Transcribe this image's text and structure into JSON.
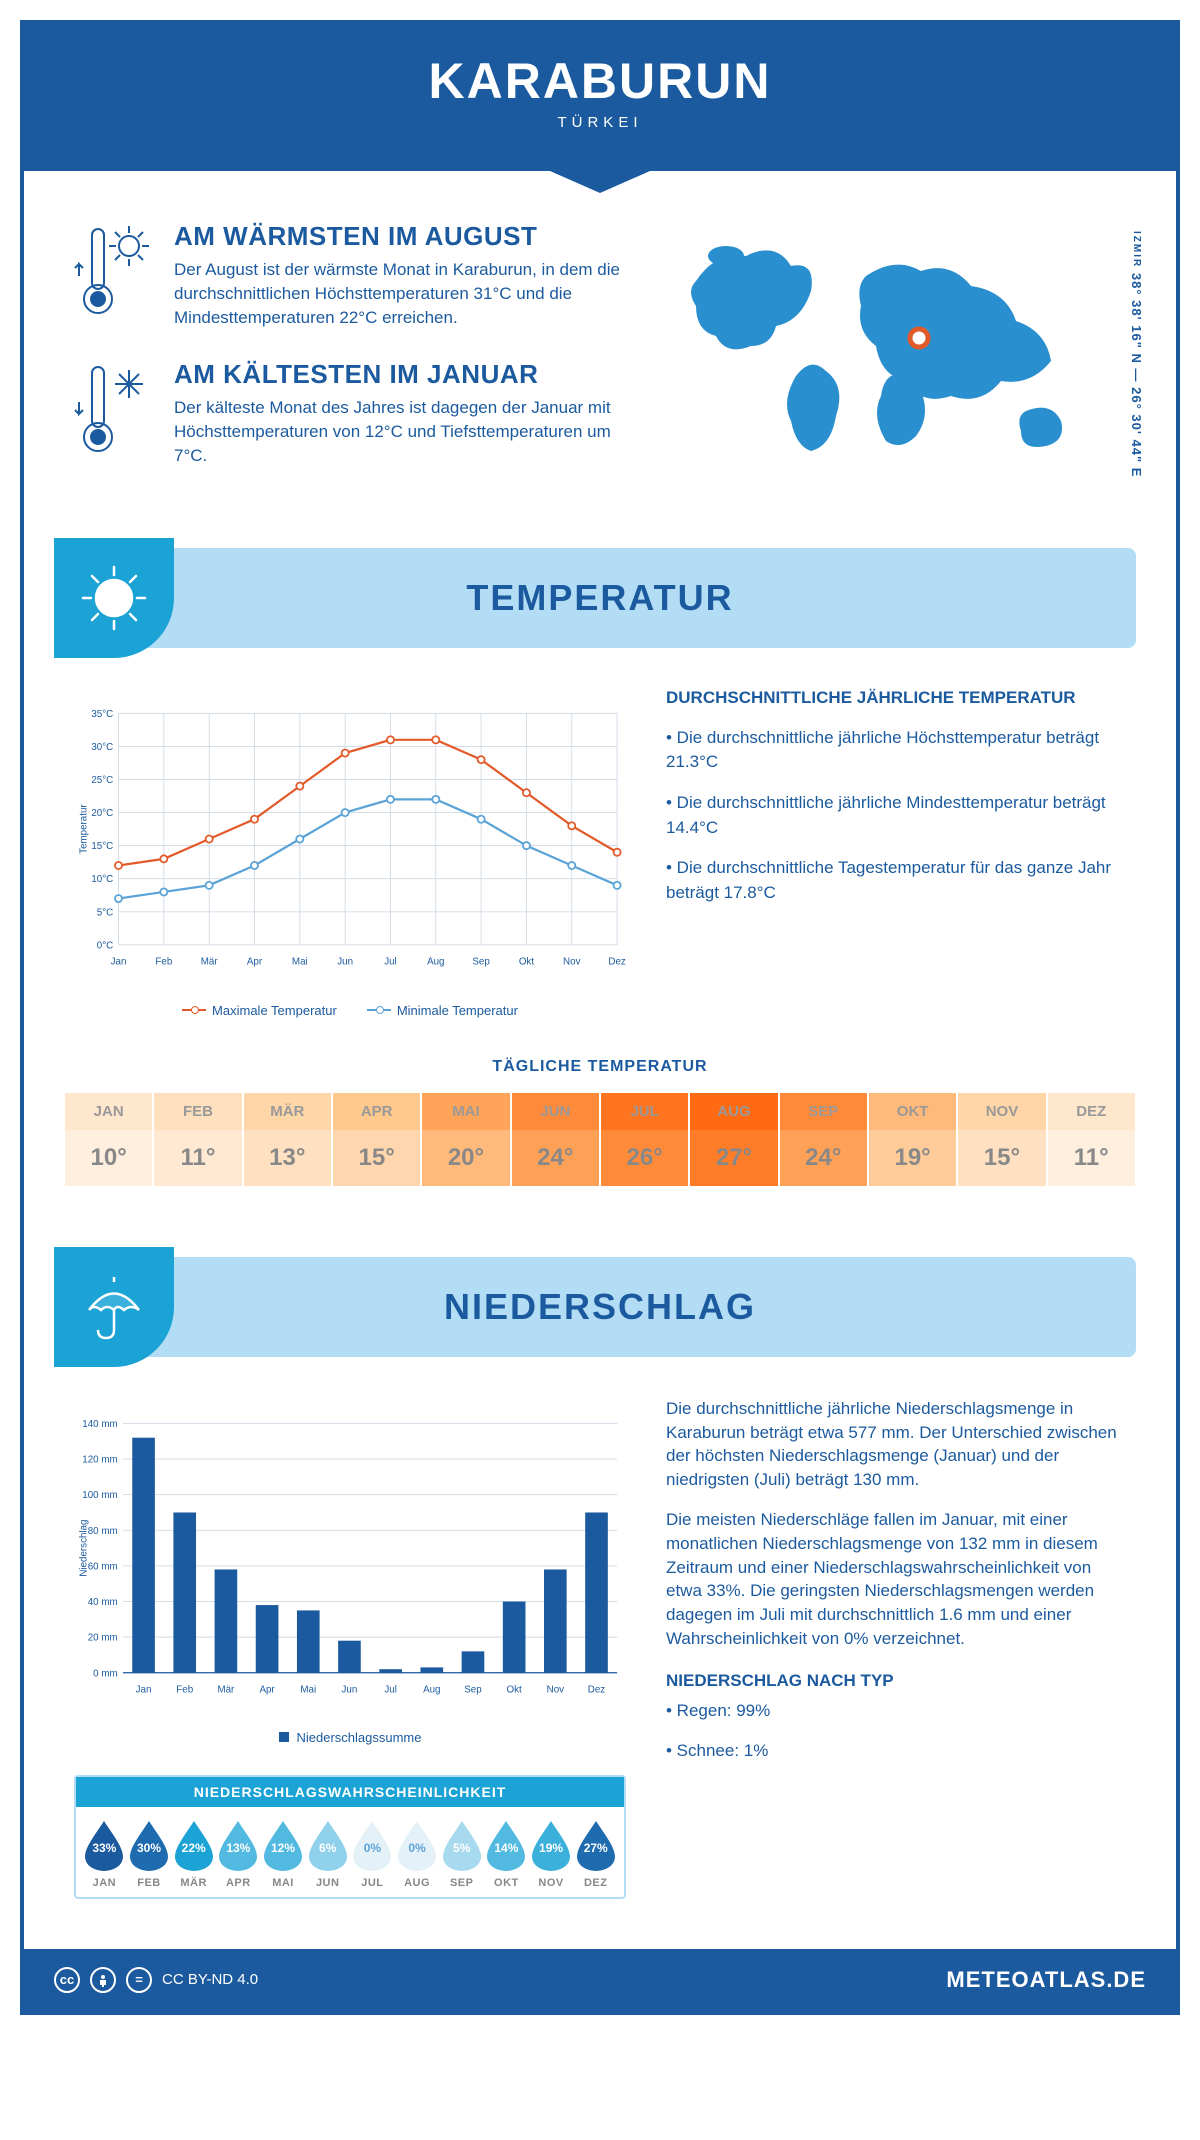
{
  "colors": {
    "primary": "#1b5a9e",
    "light_blue": "#b3ddf5",
    "accent_blue": "#1ba3d6",
    "max_line": "#e35a2a",
    "min_line": "#5ba3d6",
    "grid": "#d0d9e4",
    "white": "#ffffff"
  },
  "header": {
    "title": "KARABURUN",
    "subtitle": "TÜRKEI"
  },
  "intro": {
    "warm": {
      "heading": "AM WÄRMSTEN IM AUGUST",
      "body": "Der August ist der wärmste Monat in Karaburun, in dem die durchschnittlichen Höchsttemperaturen 31°C und die Mindesttemperaturen 22°C erreichen."
    },
    "cold": {
      "heading": "AM KÄLTESTEN IM JANUAR",
      "body": "Der kälteste Monat des Jahres ist dagegen der Januar mit Höchsttemperaturen von 12°C und Tiefsttemperaturen um 7°C."
    },
    "coords_region": "IZMIR",
    "coords": "38° 38' 16\" N — 26° 30' 44\" E",
    "marker": {
      "lon_pct": 55,
      "lat_pct": 45
    }
  },
  "temperature_section": {
    "banner_title": "TEMPERATUR",
    "chart": {
      "type": "line",
      "xlabels": [
        "Jan",
        "Feb",
        "Mär",
        "Apr",
        "Mai",
        "Jun",
        "Jul",
        "Aug",
        "Sep",
        "Okt",
        "Nov",
        "Dez"
      ],
      "ylabel": "Temperatur",
      "ylim": [
        0,
        35
      ],
      "ytick_step": 5,
      "ytick_suffix": "°C",
      "grid_color": "#d0d9e4",
      "series": [
        {
          "name": "Maximale Temperatur",
          "color": "#e35a2a",
          "values": [
            12,
            13,
            16,
            19,
            24,
            29,
            31,
            31,
            28,
            23,
            18,
            14
          ]
        },
        {
          "name": "Minimale Temperatur",
          "color": "#5ba3d6",
          "values": [
            7,
            8,
            9,
            12,
            16,
            20,
            22,
            22,
            19,
            15,
            12,
            9
          ]
        }
      ]
    },
    "side_heading": "DURCHSCHNITTLICHE JÄHRLICHE TEMPERATUR",
    "side_bullets": [
      "• Die durchschnittliche jährliche Höchsttemperatur beträgt 21.3°C",
      "• Die durchschnittliche jährliche Mindesttemperatur beträgt 14.4°C",
      "• Die durchschnittliche Tagestemperatur für das ganze Jahr beträgt 17.8°C"
    ],
    "daily_heading": "TÄGLICHE TEMPERATUR",
    "daily": {
      "months": [
        "JAN",
        "FEB",
        "MÄR",
        "APR",
        "MAI",
        "JUN",
        "JUL",
        "AUG",
        "SEP",
        "OKT",
        "NOV",
        "DEZ"
      ],
      "values": [
        "10°",
        "11°",
        "13°",
        "15°",
        "20°",
        "24°",
        "26°",
        "27°",
        "24°",
        "19°",
        "15°",
        "11°"
      ],
      "header_bg_colors": [
        "#ffe7cd",
        "#ffe0be",
        "#ffd6a8",
        "#ffc98e",
        "#ffa459",
        "#ff8a3a",
        "#ff7420",
        "#ff6a13",
        "#ff8a3a",
        "#ffb97a",
        "#ffd6a8",
        "#ffe7cd"
      ],
      "value_bg_colors": [
        "#ffefdf",
        "#ffe9d2",
        "#ffe1c2",
        "#ffd6ad",
        "#ffb97a",
        "#ffa057",
        "#ff8a3a",
        "#ff7d29",
        "#ffa057",
        "#ffcb99",
        "#ffe1c2",
        "#ffefdf"
      ]
    }
  },
  "precip_section": {
    "banner_title": "NIEDERSCHLAG",
    "chart": {
      "type": "bar",
      "xlabels": [
        "Jan",
        "Feb",
        "Mär",
        "Apr",
        "Mai",
        "Jun",
        "Jul",
        "Aug",
        "Sep",
        "Okt",
        "Nov",
        "Dez"
      ],
      "ylabel": "Niederschlag",
      "ylim": [
        0,
        140
      ],
      "ytick_step": 20,
      "ytick_suffix": " mm",
      "bar_color": "#1b5a9e",
      "grid_color": "#d0d9e4",
      "bar_width": 0.55,
      "values": [
        132,
        90,
        58,
        38,
        35,
        18,
        2,
        3,
        12,
        40,
        58,
        90
      ],
      "legend_label": "Niederschlagssumme"
    },
    "paragraphs": [
      "Die durchschnittliche jährliche Niederschlagsmenge in Karaburun beträgt etwa 577 mm. Der Unterschied zwischen der höchsten Niederschlagsmenge (Januar) und der niedrigsten (Juli) beträgt 130 mm.",
      "Die meisten Niederschläge fallen im Januar, mit einer monatlichen Niederschlagsmenge von 132 mm in diesem Zeitraum und einer Niederschlagswahrscheinlichkeit von etwa 33%. Die geringsten Niederschlagsmengen werden dagegen im Juli mit durchschnittlich 1.6 mm und einer Wahrscheinlichkeit von 0% verzeichnet."
    ],
    "type_heading": "NIEDERSCHLAG NACH TYP",
    "type_bullets": [
      "• Regen: 99%",
      "• Schnee: 1%"
    ],
    "probability": {
      "heading": "NIEDERSCHLAGSWAHRSCHEINLICHKEIT",
      "months": [
        "JAN",
        "FEB",
        "MÄR",
        "APR",
        "MAI",
        "JUN",
        "JUL",
        "AUG",
        "SEP",
        "OKT",
        "NOV",
        "DEZ"
      ],
      "values": [
        "33%",
        "30%",
        "22%",
        "13%",
        "12%",
        "6%",
        "0%",
        "0%",
        "5%",
        "14%",
        "19%",
        "27%"
      ],
      "drop_colors": [
        "#1b5a9e",
        "#1e6bb0",
        "#1ba3d6",
        "#52b9e0",
        "#52b9e0",
        "#8fd0ea",
        "#e5f1f9",
        "#e5f1f9",
        "#a8daef",
        "#52b9e0",
        "#3ab0db",
        "#1e6bb0"
      ],
      "text_colors": [
        "#fff",
        "#fff",
        "#fff",
        "#fff",
        "#fff",
        "#fff",
        "#5ba3d6",
        "#5ba3d6",
        "#fff",
        "#fff",
        "#fff",
        "#fff"
      ]
    }
  },
  "footer": {
    "license": "CC BY-ND 4.0",
    "brand": "METEOATLAS.DE"
  }
}
